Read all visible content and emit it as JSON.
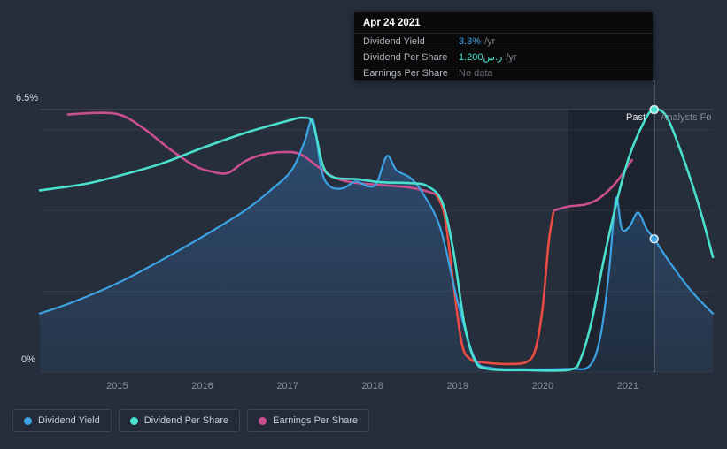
{
  "panel": {
    "background": "#262d3b"
  },
  "tooltip": {
    "date": "Apr 24 2021",
    "rows": [
      {
        "label": "Dividend Yield",
        "value": "3.3%",
        "suffix": "/yr",
        "value_color": "#3da2e3"
      },
      {
        "label": "Dividend Per Share",
        "value": "1.200ر.س",
        "suffix": "/yr",
        "value_color": "#4ae0cf"
      },
      {
        "label": "Earnings Per Share",
        "value": "No data",
        "suffix": "",
        "value_color": "#62676f"
      }
    ]
  },
  "axis": {
    "y_top_label": "6.5%",
    "y_bottom_label": "0%"
  },
  "annotations": {
    "past_label": "Past",
    "forecast_label": "Analysts Fo"
  },
  "legend": {
    "items": [
      {
        "label": "Dividend Yield",
        "color": "#3da2e3"
      },
      {
        "label": "Dividend Per Share",
        "color": "#4ae0cf"
      },
      {
        "label": "Earnings Per Share",
        "color": "#c94f8e"
      }
    ]
  },
  "chart_data": {
    "type": "line",
    "title": "Dividend history and forecast",
    "x_domain": [
      2014.09,
      2022.0
    ],
    "y_domain": [
      0,
      6.5
    ],
    "y_unit": "percent",
    "ylim_labels": [
      "0%",
      "6.5%"
    ],
    "x_ticks": [
      {
        "year": 2015,
        "label": "2015"
      },
      {
        "year": 2016,
        "label": "2016"
      },
      {
        "year": 2017,
        "label": "2017"
      },
      {
        "year": 2018,
        "label": "2018"
      },
      {
        "year": 2019,
        "label": "2019"
      },
      {
        "year": 2020,
        "label": "2020"
      },
      {
        "year": 2021,
        "label": "2021"
      }
    ],
    "y_gridlines": [
      0,
      2,
      4,
      6,
      6.5
    ],
    "marker_line_x": 2021.31,
    "marker_line_date": "Apr 24 2021",
    "highlight_band": {
      "from": 2020.3,
      "to": 2021.31
    },
    "series": [
      {
        "id": "dividend_yield",
        "name": "Dividend Yield",
        "color": "#3da2e3",
        "width": 2.2,
        "area": true,
        "points": [
          [
            2014.09,
            1.45
          ],
          [
            2014.5,
            1.75
          ],
          [
            2015,
            2.2
          ],
          [
            2015.5,
            2.75
          ],
          [
            2016,
            3.35
          ],
          [
            2016.5,
            4.0
          ],
          [
            2016.8,
            4.5
          ],
          [
            2017.05,
            5.0
          ],
          [
            2017.2,
            5.7
          ],
          [
            2017.3,
            6.25
          ],
          [
            2017.4,
            5.0
          ],
          [
            2017.5,
            4.6
          ],
          [
            2017.65,
            4.55
          ],
          [
            2017.8,
            4.72
          ],
          [
            2017.95,
            4.6
          ],
          [
            2018.05,
            4.68
          ],
          [
            2018.17,
            5.35
          ],
          [
            2018.28,
            5.0
          ],
          [
            2018.45,
            4.8
          ],
          [
            2018.6,
            4.4
          ],
          [
            2018.8,
            3.55
          ],
          [
            2019,
            1.75
          ],
          [
            2019.2,
            0.35
          ],
          [
            2019.4,
            0.1
          ],
          [
            2019.8,
            0.07
          ],
          [
            2020.3,
            0.08
          ],
          [
            2020.55,
            0.15
          ],
          [
            2020.68,
            0.9
          ],
          [
            2020.78,
            2.5
          ],
          [
            2020.86,
            4.3
          ],
          [
            2020.93,
            3.55
          ],
          [
            2021.02,
            3.6
          ],
          [
            2021.12,
            3.95
          ],
          [
            2021.22,
            3.55
          ],
          [
            2021.31,
            3.3
          ],
          [
            2021.5,
            2.7
          ],
          [
            2021.75,
            2.0
          ],
          [
            2022,
            1.45
          ]
        ]
      },
      {
        "id": "dividend_per_share",
        "name": "Dividend Per Share",
        "color": "#4ae0cf",
        "width": 2.6,
        "area": false,
        "points": [
          [
            2014.09,
            4.5
          ],
          [
            2014.6,
            4.65
          ],
          [
            2015,
            4.85
          ],
          [
            2015.5,
            5.15
          ],
          [
            2016,
            5.55
          ],
          [
            2016.5,
            5.92
          ],
          [
            2017,
            6.22
          ],
          [
            2017.18,
            6.3
          ],
          [
            2017.3,
            6.15
          ],
          [
            2017.42,
            5.1
          ],
          [
            2017.55,
            4.82
          ],
          [
            2017.8,
            4.78
          ],
          [
            2018.1,
            4.7
          ],
          [
            2018.45,
            4.68
          ],
          [
            2018.65,
            4.6
          ],
          [
            2018.82,
            4.2
          ],
          [
            2018.95,
            3.0
          ],
          [
            2019.08,
            1.2
          ],
          [
            2019.2,
            0.3
          ],
          [
            2019.35,
            0.08
          ],
          [
            2019.8,
            0.05
          ],
          [
            2020.32,
            0.06
          ],
          [
            2020.45,
            0.35
          ],
          [
            2020.58,
            1.3
          ],
          [
            2020.72,
            2.8
          ],
          [
            2020.88,
            4.3
          ],
          [
            2021.02,
            5.35
          ],
          [
            2021.18,
            6.15
          ],
          [
            2021.3,
            6.5
          ],
          [
            2021.45,
            6.35
          ],
          [
            2021.6,
            5.6
          ],
          [
            2021.75,
            4.7
          ],
          [
            2021.88,
            3.8
          ],
          [
            2022,
            2.85
          ]
        ]
      },
      {
        "id": "eps_past_1",
        "name": "Earnings Per Share",
        "color": "#c94f8e",
        "width": 2.6,
        "area": false,
        "points": [
          [
            2014.42,
            6.38
          ],
          [
            2014.8,
            6.42
          ],
          [
            2015.05,
            6.36
          ],
          [
            2015.3,
            6.05
          ],
          [
            2015.6,
            5.55
          ],
          [
            2015.9,
            5.12
          ],
          [
            2016.1,
            4.97
          ],
          [
            2016.3,
            4.93
          ],
          [
            2016.5,
            5.22
          ],
          [
            2016.7,
            5.38
          ],
          [
            2016.95,
            5.45
          ],
          [
            2017.15,
            5.4
          ],
          [
            2017.35,
            5.1
          ],
          [
            2017.55,
            4.82
          ],
          [
            2017.75,
            4.7
          ],
          [
            2018.05,
            4.64
          ],
          [
            2018.4,
            4.58
          ],
          [
            2018.6,
            4.5
          ],
          [
            2018.75,
            4.4
          ]
        ]
      },
      {
        "id": "eps_negative_period",
        "name": "Earnings Per Share (loss period)",
        "color": "#ea4b42",
        "width": 2.6,
        "area": false,
        "points": [
          [
            2018.75,
            4.4
          ],
          [
            2018.85,
            3.85
          ],
          [
            2018.95,
            2.2
          ],
          [
            2019.05,
            0.7
          ],
          [
            2019.15,
            0.32
          ],
          [
            2019.3,
            0.24
          ],
          [
            2019.6,
            0.2
          ],
          [
            2019.82,
            0.26
          ],
          [
            2019.92,
            0.6
          ],
          [
            2020,
            1.6
          ],
          [
            2020.07,
            3.2
          ],
          [
            2020.13,
            4.0
          ]
        ]
      },
      {
        "id": "eps_past_2",
        "name": "Earnings Per Share",
        "color": "#c94f8e",
        "width": 2.6,
        "area": false,
        "points": [
          [
            2020.13,
            4.0
          ],
          [
            2020.3,
            4.1
          ],
          [
            2020.5,
            4.15
          ],
          [
            2020.65,
            4.28
          ],
          [
            2020.8,
            4.55
          ],
          [
            2020.92,
            4.85
          ],
          [
            2020.98,
            5.05
          ],
          [
            2021.05,
            5.25
          ]
        ]
      }
    ],
    "markers": [
      {
        "series": "dividend_per_share",
        "x": 2021.31,
        "y": 6.5,
        "color": "#4ae0cf"
      },
      {
        "series": "dividend_yield",
        "x": 2021.31,
        "y": 3.3,
        "color": "#3da2e3"
      }
    ],
    "style": {
      "grid_color": "rgba(255,255,255,0.07)",
      "grid_top_color": "rgba(255,255,255,0.18)",
      "band_color": "rgba(0,0,0,0.20)",
      "area_top": "rgba(54,122,188,0.42)",
      "area_bottom": "rgba(54,122,188,0.10)",
      "marker_line_color": "rgba(255,255,255,0.75)",
      "marker_ring_color": "rgba(238,246,252,0.95)"
    }
  }
}
